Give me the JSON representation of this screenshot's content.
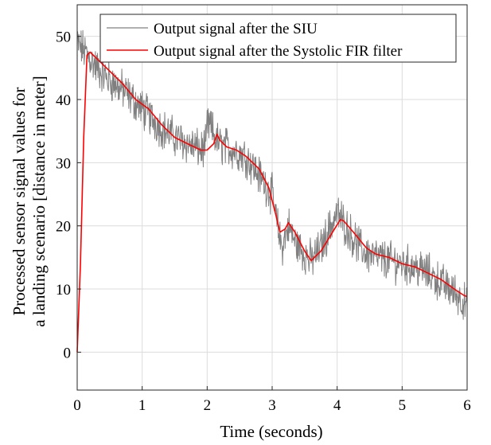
{
  "chart_data": {
    "type": "line",
    "title": "",
    "xlabel": "Time (seconds)",
    "ylabel_lines": [
      "Processed sensor signal values for",
      "a landing scenario [distance in meter]"
    ],
    "xlim": [
      0,
      6
    ],
    "ylim": [
      -6,
      55
    ],
    "xticks": [
      0,
      1,
      2,
      3,
      4,
      5,
      6
    ],
    "yticks": [
      0,
      10,
      20,
      30,
      40,
      50
    ],
    "grid": true,
    "legend_position": "top-right",
    "series": [
      {
        "name": "Output signal after the SIU",
        "color": "#808080",
        "noisy": true,
        "x": [
          0,
          0.02,
          0.08,
          0.15,
          0.3,
          0.5,
          0.7,
          0.9,
          1.1,
          1.3,
          1.5,
          1.7,
          1.9,
          1.98,
          2.0,
          2.06,
          2.12,
          2.2,
          2.3,
          2.45,
          2.6,
          2.8,
          3.0,
          3.08,
          3.15,
          3.25,
          3.35,
          3.5,
          3.6,
          3.75,
          3.9,
          4.0,
          4.1,
          4.25,
          4.4,
          4.6,
          4.8,
          5.0,
          5.2,
          5.4,
          5.6,
          5.8,
          5.95,
          6.0
        ],
        "y": [
          49,
          48.5,
          48,
          47.2,
          45,
          43,
          41.5,
          39.5,
          37.5,
          35.5,
          34,
          33,
          32,
          32.5,
          36,
          35.5,
          34,
          32.8,
          32.5,
          31.8,
          31,
          28,
          25,
          20,
          16.5,
          20,
          17.5,
          15.5,
          14.5,
          16.5,
          20,
          22,
          20.5,
          18,
          16,
          15,
          14.5,
          14,
          13.5,
          12.5,
          11,
          9.5,
          8,
          7
        ]
      },
      {
        "name": "Output signal after the Systolic FIR filter",
        "color": "#ff0000",
        "noisy": false,
        "x": [
          0,
          0.05,
          0.1,
          0.15,
          0.2,
          0.3,
          0.5,
          0.7,
          0.9,
          1.1,
          1.3,
          1.5,
          1.7,
          1.9,
          2.0,
          2.1,
          2.15,
          2.2,
          2.3,
          2.45,
          2.6,
          2.8,
          2.95,
          3.05,
          3.12,
          3.2,
          3.25,
          3.35,
          3.5,
          3.6,
          3.75,
          3.9,
          4.05,
          4.1,
          4.25,
          4.45,
          4.6,
          4.8,
          5.0,
          5.2,
          5.4,
          5.6,
          5.8,
          5.95,
          6.0
        ],
        "y": [
          0,
          14,
          34,
          47,
          47.5,
          46.5,
          44.5,
          42.5,
          40,
          38.5,
          36,
          34,
          33,
          32,
          32,
          33,
          34.5,
          33.5,
          32.5,
          32,
          31,
          29,
          26,
          22,
          19,
          19.5,
          20.5,
          19,
          16,
          14.5,
          16,
          18.5,
          21,
          20.8,
          19,
          16.5,
          15.5,
          15,
          14,
          13.5,
          12.5,
          11.5,
          10,
          9,
          8.8
        ]
      }
    ]
  }
}
